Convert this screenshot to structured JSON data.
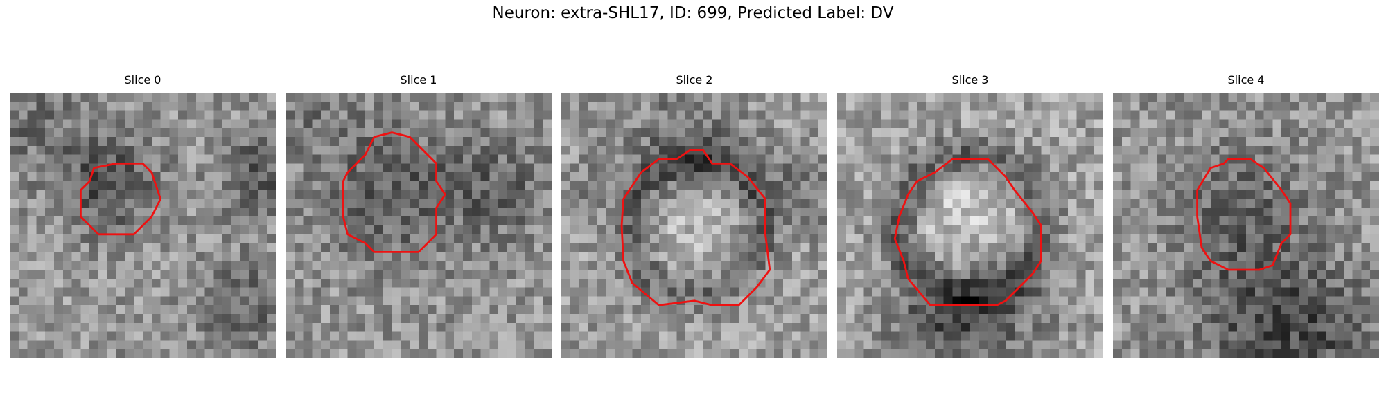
{
  "figure": {
    "title": "Neuron: extra-SHL17, ID: 699, Predicted Label: DV"
  },
  "panels": [
    {
      "title": "Slice 0"
    },
    {
      "title": "Slice 1"
    },
    {
      "title": "Slice 2"
    },
    {
      "title": "Slice 3"
    },
    {
      "title": "Slice 4"
    }
  ],
  "style": {
    "contour_color": "#ee1111"
  }
}
